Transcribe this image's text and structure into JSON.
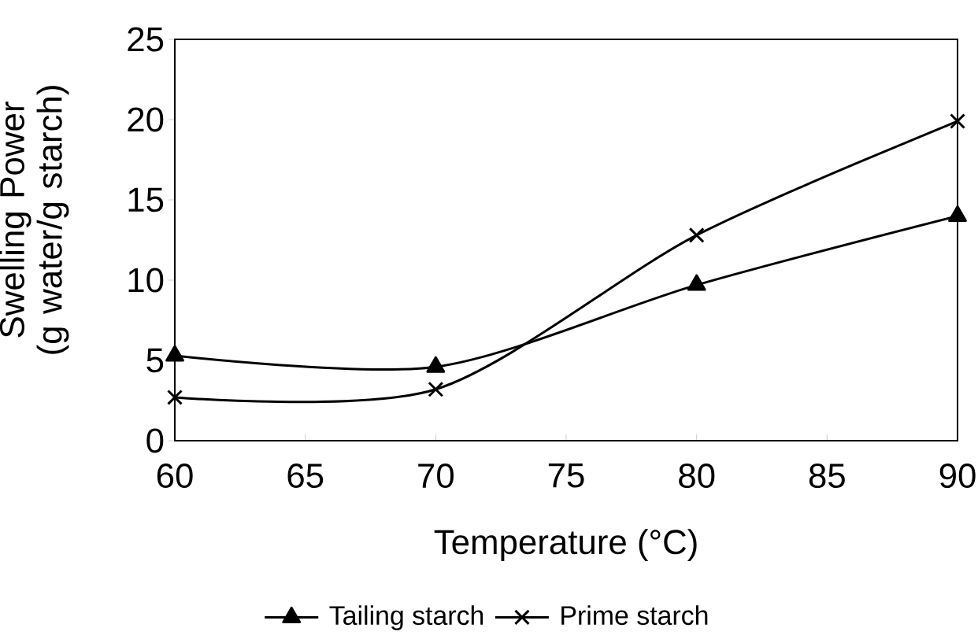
{
  "chart_data": {
    "type": "line",
    "xlabel": "Temperature (°C)",
    "ylabel": "Swelling Power (g water/g starch)",
    "x": [
      60,
      70,
      80,
      90
    ],
    "series": [
      {
        "name": "Tailing starch",
        "color": "#000000",
        "marker": "triangle",
        "values": [
          5.3,
          4.6,
          9.7,
          14.0
        ]
      },
      {
        "name": "Prime starch",
        "color": "#000000",
        "marker": "cross",
        "values": [
          2.7,
          3.2,
          12.8,
          19.9
        ]
      }
    ],
    "xlim": [
      60,
      90
    ],
    "xticks": [
      60,
      65,
      70,
      75,
      80,
      85,
      90
    ],
    "ylim": [
      0,
      25
    ],
    "yticks": [
      0,
      5,
      10,
      15,
      20,
      25
    ],
    "grid": false,
    "legend": "bottom",
    "line_style": "solid"
  }
}
